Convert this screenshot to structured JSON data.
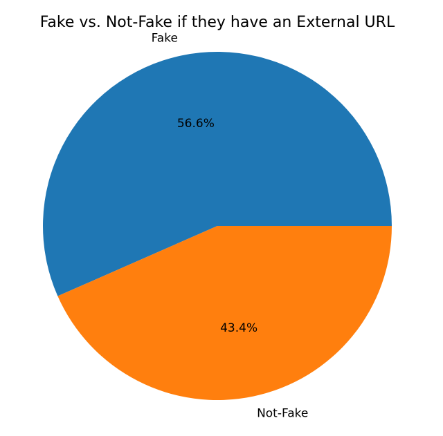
{
  "chart_data": {
    "type": "pie",
    "title": "Fake vs. Not-Fake if they have an External URL",
    "categories": [
      "Fake",
      "Not-Fake"
    ],
    "values": [
      56.6,
      43.4
    ],
    "percent_labels": [
      "56.6%",
      "43.4%"
    ],
    "colors": [
      "#1f77b4",
      "#ff7f0e"
    ],
    "start_angle_deg": 0,
    "direction": "counterclockwise"
  }
}
